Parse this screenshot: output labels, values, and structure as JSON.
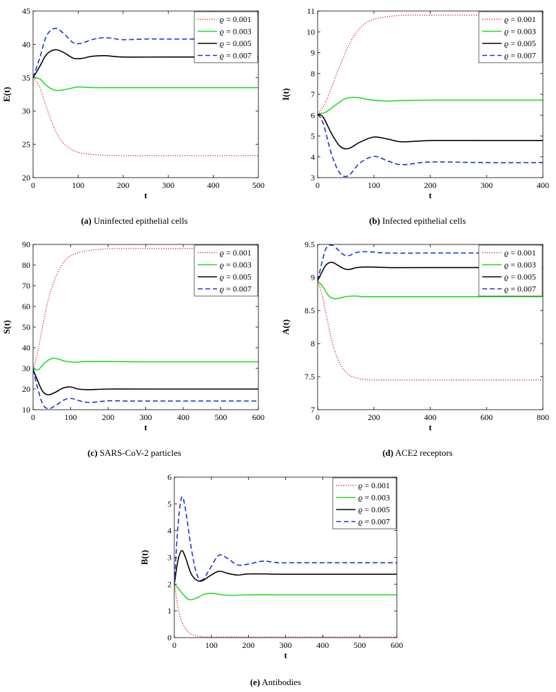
{
  "figure": {
    "legend_symbol": "ϱ",
    "legend_separator": " = ",
    "series_styles": [
      {
        "color": "#e02020",
        "dash": "1.2 2.2",
        "width": 1.4
      },
      {
        "color": "#22dd22",
        "dash": "",
        "width": 1.6
      },
      {
        "color": "#000000",
        "dash": "",
        "width": 1.6
      },
      {
        "color": "#1a2fd8",
        "dash": "7 4",
        "width": 1.6
      }
    ]
  },
  "chart_data": [
    {
      "id": "a",
      "type": "line",
      "caption_label": "(a)",
      "caption_text": "Uninfected epithelial cells",
      "xlabel": "t",
      "ylabel": "E(t)",
      "xlim": [
        0,
        500
      ],
      "ylim": [
        20,
        45
      ],
      "xticks": [
        "0",
        "100",
        "200",
        "300",
        "400",
        "500"
      ],
      "yticks": [
        "20",
        "25",
        "30",
        "35",
        "40",
        "45"
      ],
      "series": [
        {
          "name": "0.001",
          "x": [
            0,
            15,
            30,
            50,
            70,
            100,
            150,
            200,
            300,
            400,
            500
          ],
          "y": [
            35,
            33.5,
            30.5,
            27.0,
            25.0,
            23.8,
            23.4,
            23.3,
            23.3,
            23.3,
            23.3
          ]
        },
        {
          "name": "0.003",
          "x": [
            0,
            15,
            30,
            50,
            70,
            100,
            130,
            160,
            200,
            300,
            500
          ],
          "y": [
            35,
            34.8,
            33.8,
            33.1,
            33.2,
            33.6,
            33.5,
            33.5,
            33.5,
            33.5,
            33.5
          ]
        },
        {
          "name": "0.005",
          "x": [
            0,
            15,
            30,
            50,
            70,
            90,
            110,
            130,
            160,
            200,
            300,
            500
          ],
          "y": [
            35,
            36.7,
            38.5,
            39.2,
            38.7,
            37.9,
            37.9,
            38.2,
            38.3,
            38.1,
            38.1,
            38.1
          ]
        },
        {
          "name": "0.007",
          "x": [
            0,
            15,
            30,
            50,
            70,
            90,
            110,
            130,
            160,
            200,
            250,
            300,
            500
          ],
          "y": [
            35,
            38.0,
            41.3,
            42.4,
            41.5,
            40.2,
            40.2,
            40.7,
            41.0,
            40.7,
            40.8,
            40.8,
            40.8
          ]
        }
      ]
    },
    {
      "id": "b",
      "type": "line",
      "caption_label": "(b)",
      "caption_text": "Infected epithelial cells",
      "xlabel": "t",
      "ylabel": "I(t)",
      "xlim": [
        0,
        400
      ],
      "ylim": [
        3,
        11
      ],
      "xticks": [
        "0",
        "100",
        "200",
        "300",
        "400"
      ],
      "yticks": [
        "3",
        "4",
        "5",
        "6",
        "7",
        "8",
        "9",
        "10",
        "11"
      ],
      "series": [
        {
          "name": "0.001",
          "x": [
            0,
            10,
            20,
            40,
            60,
            80,
            100,
            130,
            160,
            200,
            300,
            400
          ],
          "y": [
            6.05,
            6.4,
            7.0,
            8.4,
            9.6,
            10.3,
            10.6,
            10.75,
            10.8,
            10.8,
            10.8,
            10.8
          ]
        },
        {
          "name": "0.003",
          "x": [
            0,
            15,
            30,
            50,
            70,
            90,
            120,
            150,
            200,
            300,
            400
          ],
          "y": [
            6.05,
            6.15,
            6.45,
            6.8,
            6.85,
            6.75,
            6.68,
            6.7,
            6.72,
            6.72,
            6.72
          ]
        },
        {
          "name": "0.005",
          "x": [
            0,
            10,
            25,
            40,
            55,
            75,
            100,
            125,
            150,
            200,
            300,
            400
          ],
          "y": [
            6.05,
            5.9,
            5.1,
            4.5,
            4.4,
            4.7,
            4.95,
            4.85,
            4.72,
            4.78,
            4.78,
            4.78
          ]
        },
        {
          "name": "0.007",
          "x": [
            0,
            10,
            25,
            40,
            55,
            75,
            100,
            125,
            150,
            200,
            300,
            400
          ],
          "y": [
            6.05,
            5.6,
            4.1,
            3.2,
            3.1,
            3.7,
            4.02,
            3.8,
            3.62,
            3.75,
            3.72,
            3.72
          ]
        }
      ]
    },
    {
      "id": "c",
      "type": "line",
      "caption_label": "(c)",
      "caption_text": "SARS-CoV-2 particles",
      "xlabel": "t",
      "ylabel": "S(t)",
      "xlim": [
        0,
        600
      ],
      "ylim": [
        10,
        90
      ],
      "xticks": [
        "0",
        "100",
        "200",
        "300",
        "400",
        "500",
        "600"
      ],
      "yticks": [
        "10",
        "20",
        "30",
        "40",
        "50",
        "60",
        "70",
        "80",
        "90"
      ],
      "series": [
        {
          "name": "0.001",
          "x": [
            0,
            10,
            25,
            40,
            60,
            80,
            100,
            130,
            170,
            220,
            300,
            400,
            600
          ],
          "y": [
            29.5,
            36,
            50,
            63,
            74,
            81,
            84.5,
            86.5,
            87.5,
            88,
            88,
            88,
            88
          ]
        },
        {
          "name": "0.003",
          "x": [
            0,
            15,
            30,
            50,
            65,
            85,
            110,
            140,
            200,
            300,
            600
          ],
          "y": [
            29.5,
            29.5,
            32.5,
            34.8,
            34.6,
            33.5,
            33.0,
            33.3,
            33.3,
            33.2,
            33.2
          ]
        },
        {
          "name": "0.005",
          "x": [
            0,
            10,
            25,
            40,
            60,
            80,
            100,
            120,
            150,
            200,
            300,
            600
          ],
          "y": [
            29.5,
            25,
            19,
            17.2,
            18.5,
            20.5,
            21,
            20,
            19.7,
            20,
            20,
            20
          ]
        },
        {
          "name": "0.007",
          "x": [
            0,
            10,
            25,
            40,
            60,
            80,
            100,
            120,
            150,
            200,
            250,
            300,
            600
          ],
          "y": [
            29.5,
            22,
            13,
            10.5,
            12,
            14.5,
            15.5,
            14.5,
            13.5,
            14.3,
            14.2,
            14.2,
            14.2
          ]
        }
      ]
    },
    {
      "id": "d",
      "type": "line",
      "caption_label": "(d)",
      "caption_text": "ACE2 receptors",
      "xlabel": "t",
      "ylabel": "A(t)",
      "xlim": [
        0,
        800
      ],
      "ylim": [
        7,
        9.5
      ],
      "xticks": [
        "0",
        "200",
        "400",
        "600",
        "800"
      ],
      "yticks": [
        "7",
        "7.5",
        "8",
        "8.5",
        "9",
        "9.5"
      ],
      "series": [
        {
          "name": "0.001",
          "x": [
            0,
            15,
            30,
            50,
            70,
            90,
            110,
            130,
            160,
            200,
            300,
            400,
            800
          ],
          "y": [
            8.95,
            8.75,
            8.45,
            8.05,
            7.78,
            7.62,
            7.53,
            7.49,
            7.46,
            7.45,
            7.45,
            7.45,
            7.45
          ]
        },
        {
          "name": "0.003",
          "x": [
            0,
            20,
            40,
            60,
            80,
            100,
            130,
            160,
            200,
            300,
            800
          ],
          "y": [
            8.95,
            8.85,
            8.72,
            8.68,
            8.69,
            8.71,
            8.72,
            8.71,
            8.71,
            8.71,
            8.71
          ]
        },
        {
          "name": "0.005",
          "x": [
            0,
            15,
            30,
            50,
            70,
            90,
            110,
            140,
            180,
            250,
            400,
            800
          ],
          "y": [
            8.95,
            9.08,
            9.19,
            9.23,
            9.19,
            9.14,
            9.12,
            9.15,
            9.16,
            9.15,
            9.15,
            9.15
          ]
        },
        {
          "name": "0.007",
          "x": [
            0,
            15,
            30,
            50,
            70,
            90,
            110,
            140,
            180,
            250,
            400,
            800
          ],
          "y": [
            8.95,
            9.22,
            9.44,
            9.49,
            9.43,
            9.35,
            9.33,
            9.38,
            9.39,
            9.37,
            9.37,
            9.37
          ]
        }
      ]
    },
    {
      "id": "e",
      "type": "line",
      "caption_label": "(e)",
      "caption_text": "Antibodies",
      "xlabel": "t",
      "ylabel": "B(t)",
      "xlim": [
        0,
        600
      ],
      "ylim": [
        0,
        6
      ],
      "xticks": [
        "0",
        "100",
        "200",
        "300",
        "400",
        "500",
        "600"
      ],
      "yticks": [
        "0",
        "1",
        "2",
        "3",
        "4",
        "5",
        "6"
      ],
      "series": [
        {
          "name": "0.001",
          "x": [
            0,
            5,
            10,
            20,
            35,
            50,
            70,
            100,
            150,
            200,
            600
          ],
          "y": [
            2.0,
            1.6,
            1.1,
            0.6,
            0.25,
            0.1,
            0.04,
            0.02,
            0.02,
            0.02,
            0.02
          ]
        },
        {
          "name": "0.003",
          "x": [
            0,
            10,
            25,
            40,
            60,
            80,
            100,
            130,
            160,
            200,
            300,
            600
          ],
          "y": [
            2.0,
            1.85,
            1.6,
            1.42,
            1.48,
            1.62,
            1.66,
            1.6,
            1.58,
            1.6,
            1.6,
            1.6
          ]
        },
        {
          "name": "0.005",
          "x": [
            0,
            10,
            20,
            30,
            45,
            60,
            75,
            95,
            120,
            145,
            170,
            200,
            250,
            300,
            600
          ],
          "y": [
            2.0,
            2.9,
            3.25,
            3.0,
            2.4,
            2.15,
            2.12,
            2.3,
            2.48,
            2.4,
            2.34,
            2.38,
            2.38,
            2.37,
            2.37
          ]
        },
        {
          "name": "0.007",
          "x": [
            0,
            10,
            20,
            30,
            45,
            60,
            75,
            95,
            120,
            145,
            170,
            200,
            240,
            280,
            350,
            600
          ],
          "y": [
            2.0,
            4.2,
            5.25,
            4.8,
            3.4,
            2.4,
            2.15,
            2.55,
            3.08,
            2.95,
            2.72,
            2.75,
            2.86,
            2.8,
            2.8,
            2.8
          ]
        }
      ]
    }
  ]
}
